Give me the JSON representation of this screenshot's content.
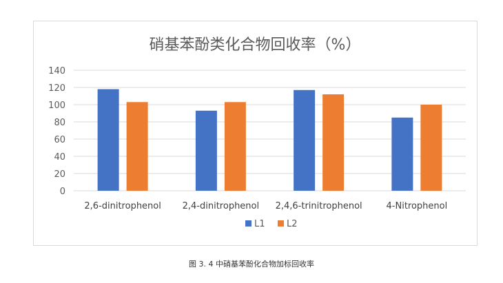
{
  "chart_data": {
    "type": "bar",
    "title": "硝基苯酚类化合物回收率（%）",
    "xlabel": "",
    "ylabel": "",
    "categories": [
      "2,6-dinitrophenol",
      "2,4-dinitrophenol",
      "2,4,6-trinitrophenol",
      "4-Nitrophenol"
    ],
    "series": [
      {
        "name": "L1",
        "values": [
          118,
          93,
          117,
          85
        ],
        "color": "#4472c4"
      },
      {
        "name": "L2",
        "values": [
          103,
          103,
          112,
          100
        ],
        "color": "#ed7d31"
      }
    ],
    "ylim": [
      0,
      140
    ],
    "yticks": [
      0,
      20,
      40,
      60,
      80,
      100,
      120,
      140
    ],
    "grid": true,
    "legend_position": "bottom"
  },
  "caption": "图 3. 4 中硝基苯酚化合物加标回收率"
}
